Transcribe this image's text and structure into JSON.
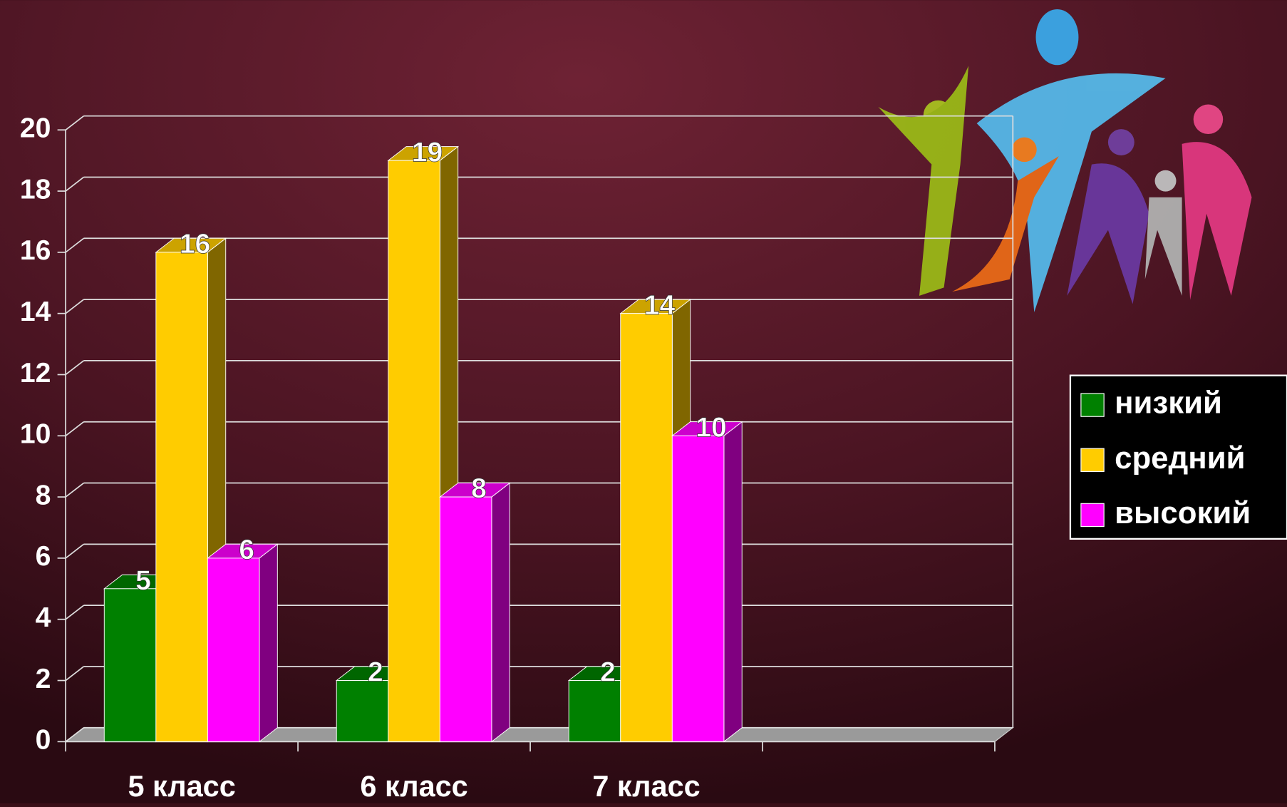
{
  "chart_data": {
    "type": "bar3d",
    "categories": [
      "5 класс",
      "6 класс",
      "7 класс",
      null
    ],
    "series": [
      {
        "name": "низкий",
        "color": "#008000",
        "values": [
          5,
          2,
          2,
          null
        ]
      },
      {
        "name": "средний",
        "color": "#ffcc00",
        "values": [
          16,
          19,
          14,
          null
        ]
      },
      {
        "name": "высокий",
        "color": "#ff00ff",
        "values": [
          6,
          8,
          10,
          null
        ]
      }
    ],
    "ylim": [
      0,
      20
    ],
    "yticks": [
      0,
      2,
      4,
      6,
      8,
      10,
      12,
      14,
      16,
      18,
      20
    ],
    "grid": true,
    "legend": "right"
  }
}
